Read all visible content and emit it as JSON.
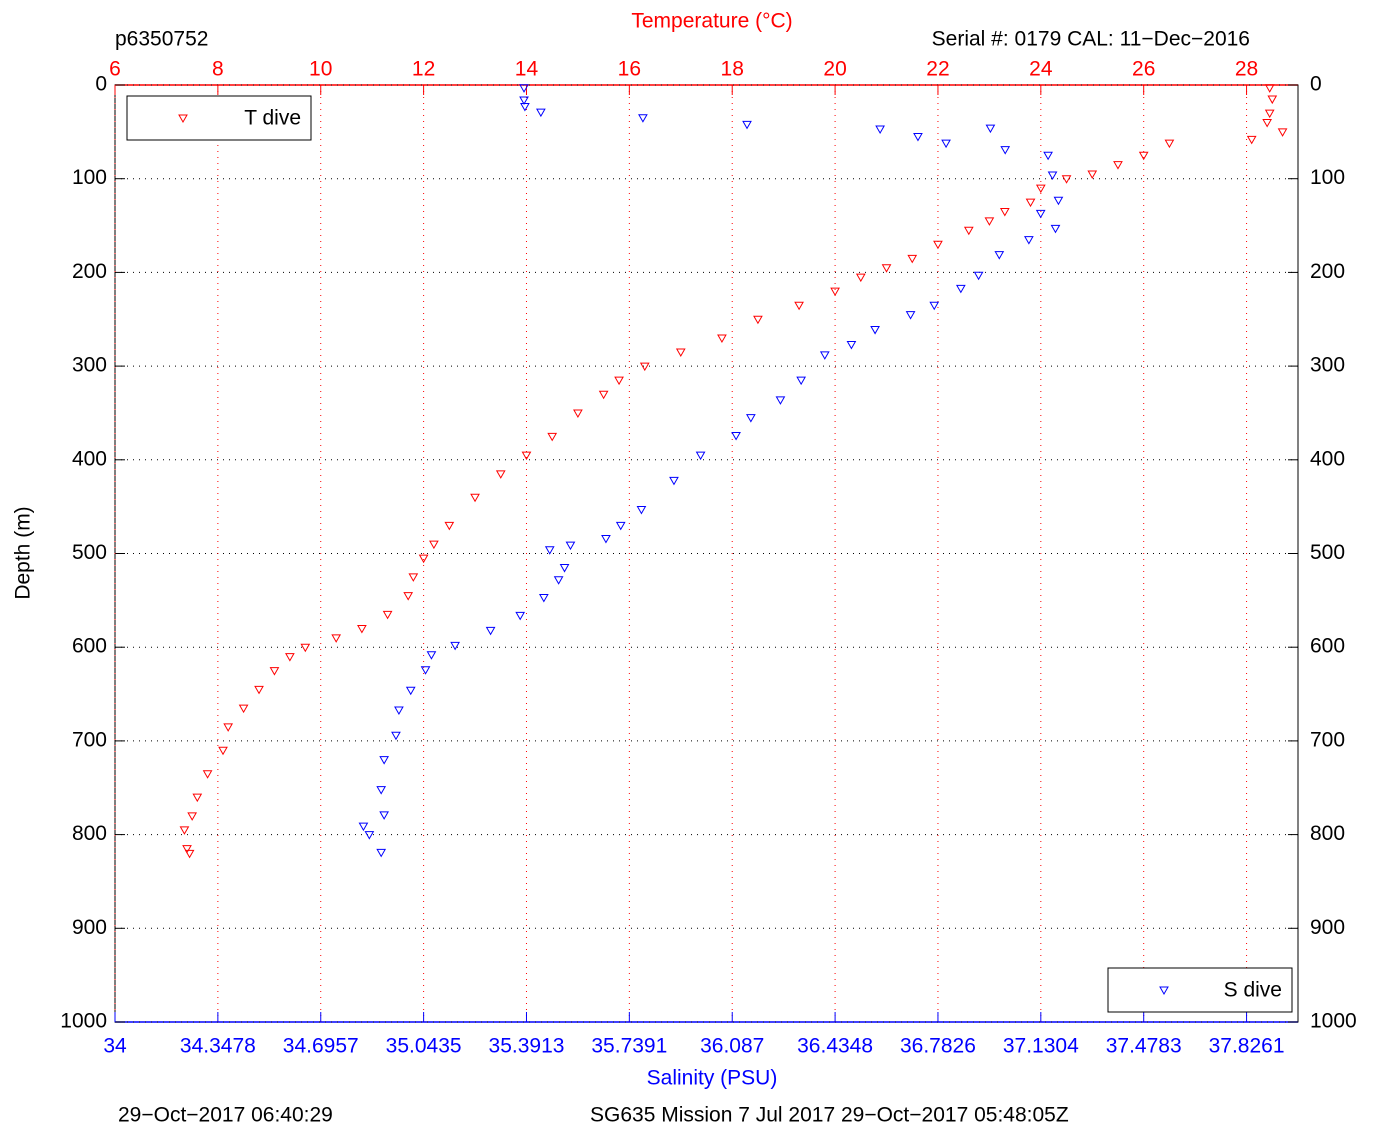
{
  "chart_data": {
    "type": "scatter",
    "title": "p6350752",
    "subtitle": "Serial #: 0179  CAL: 11−Dec−2016",
    "x_label": "Temperature (°C)",
    "x2_label": "Salinity (PSU)",
    "y_label": "Depth (m)",
    "footer_left": "29−Oct−2017 06:40:29",
    "footer_right": "SG635 Mission 7 Jul 2017 29−Oct−2017 05:48:05Z",
    "xlim": [
      6,
      29
    ],
    "xticks": [
      6,
      8,
      10,
      12,
      14,
      16,
      18,
      20,
      22,
      24,
      26,
      28
    ],
    "x2lim": [
      34,
      38
    ],
    "x2ticks": [
      34,
      34.3478,
      34.6957,
      35.0435,
      35.3913,
      35.7391,
      36.087,
      36.4348,
      36.7826,
      37.1304,
      37.4783,
      37.8261
    ],
    "ylim": [
      0,
      1000
    ],
    "yticks": [
      0,
      100,
      200,
      300,
      400,
      500,
      600,
      700,
      800,
      900,
      1000
    ],
    "y_reversed": true,
    "grid": true,
    "series": [
      {
        "name": "T dive",
        "color": "#ff0000",
        "axis": "x",
        "legend": "upper left",
        "x": [
          28.45,
          28.5,
          28.45,
          28.4,
          28.7,
          28.1,
          26.5,
          26.0,
          25.5,
          25.0,
          24.5,
          24.0,
          23.8,
          23.3,
          23.0,
          22.6,
          22.0,
          21.5,
          21.0,
          20.5,
          20.0,
          19.3,
          18.5,
          17.8,
          17.0,
          16.3,
          15.8,
          15.5,
          15.0,
          14.5,
          14.0,
          13.5,
          13.0,
          12.5,
          12.2,
          12.0,
          11.8,
          11.7,
          11.3,
          10.8,
          10.3,
          9.7,
          9.4,
          9.1,
          8.8,
          8.5,
          8.2,
          8.1,
          7.8,
          7.6,
          7.5,
          7.35,
          7.4,
          7.45
        ],
        "y": [
          3,
          15,
          30,
          40,
          50,
          58,
          62,
          75,
          85,
          95,
          100,
          110,
          125,
          135,
          145,
          155,
          170,
          185,
          195,
          205,
          220,
          235,
          250,
          270,
          285,
          300,
          315,
          330,
          350,
          375,
          395,
          415,
          440,
          470,
          490,
          505,
          525,
          545,
          565,
          580,
          590,
          600,
          610,
          625,
          645,
          665,
          685,
          710,
          735,
          760,
          780,
          795,
          815,
          820
        ]
      },
      {
        "name": "S dive",
        "color": "#0000ff",
        "axis": "x2",
        "legend": "lower right",
        "x": [
          35.383,
          35.383,
          35.386,
          35.44,
          35.785,
          36.137,
          36.587,
          36.715,
          36.81,
          36.96,
          37.01,
          37.155,
          37.17,
          37.19,
          37.13,
          37.18,
          37.09,
          36.99,
          36.92,
          36.86,
          36.77,
          36.69,
          36.57,
          36.49,
          36.4,
          36.32,
          36.25,
          36.15,
          36.1,
          35.98,
          35.89,
          35.78,
          35.71,
          35.66,
          35.54,
          35.47,
          35.52,
          35.5,
          35.45,
          35.37,
          35.27,
          35.15,
          35.07,
          35.05,
          35.0,
          34.96,
          34.95,
          34.91,
          34.9,
          34.91,
          34.86,
          34.84,
          34.9
        ],
        "y": [
          3,
          16,
          23,
          29,
          35,
          42,
          47,
          55,
          62,
          46,
          69,
          75,
          96,
          123,
          137,
          153,
          165,
          181,
          203,
          217,
          235,
          245,
          261,
          277,
          288,
          315,
          336,
          355,
          374,
          395,
          422,
          453,
          470,
          484,
          491,
          496,
          515,
          528,
          547,
          566,
          582,
          598,
          608,
          624,
          646,
          667,
          694,
          720,
          752,
          779,
          800,
          791,
          819
        ]
      }
    ]
  }
}
